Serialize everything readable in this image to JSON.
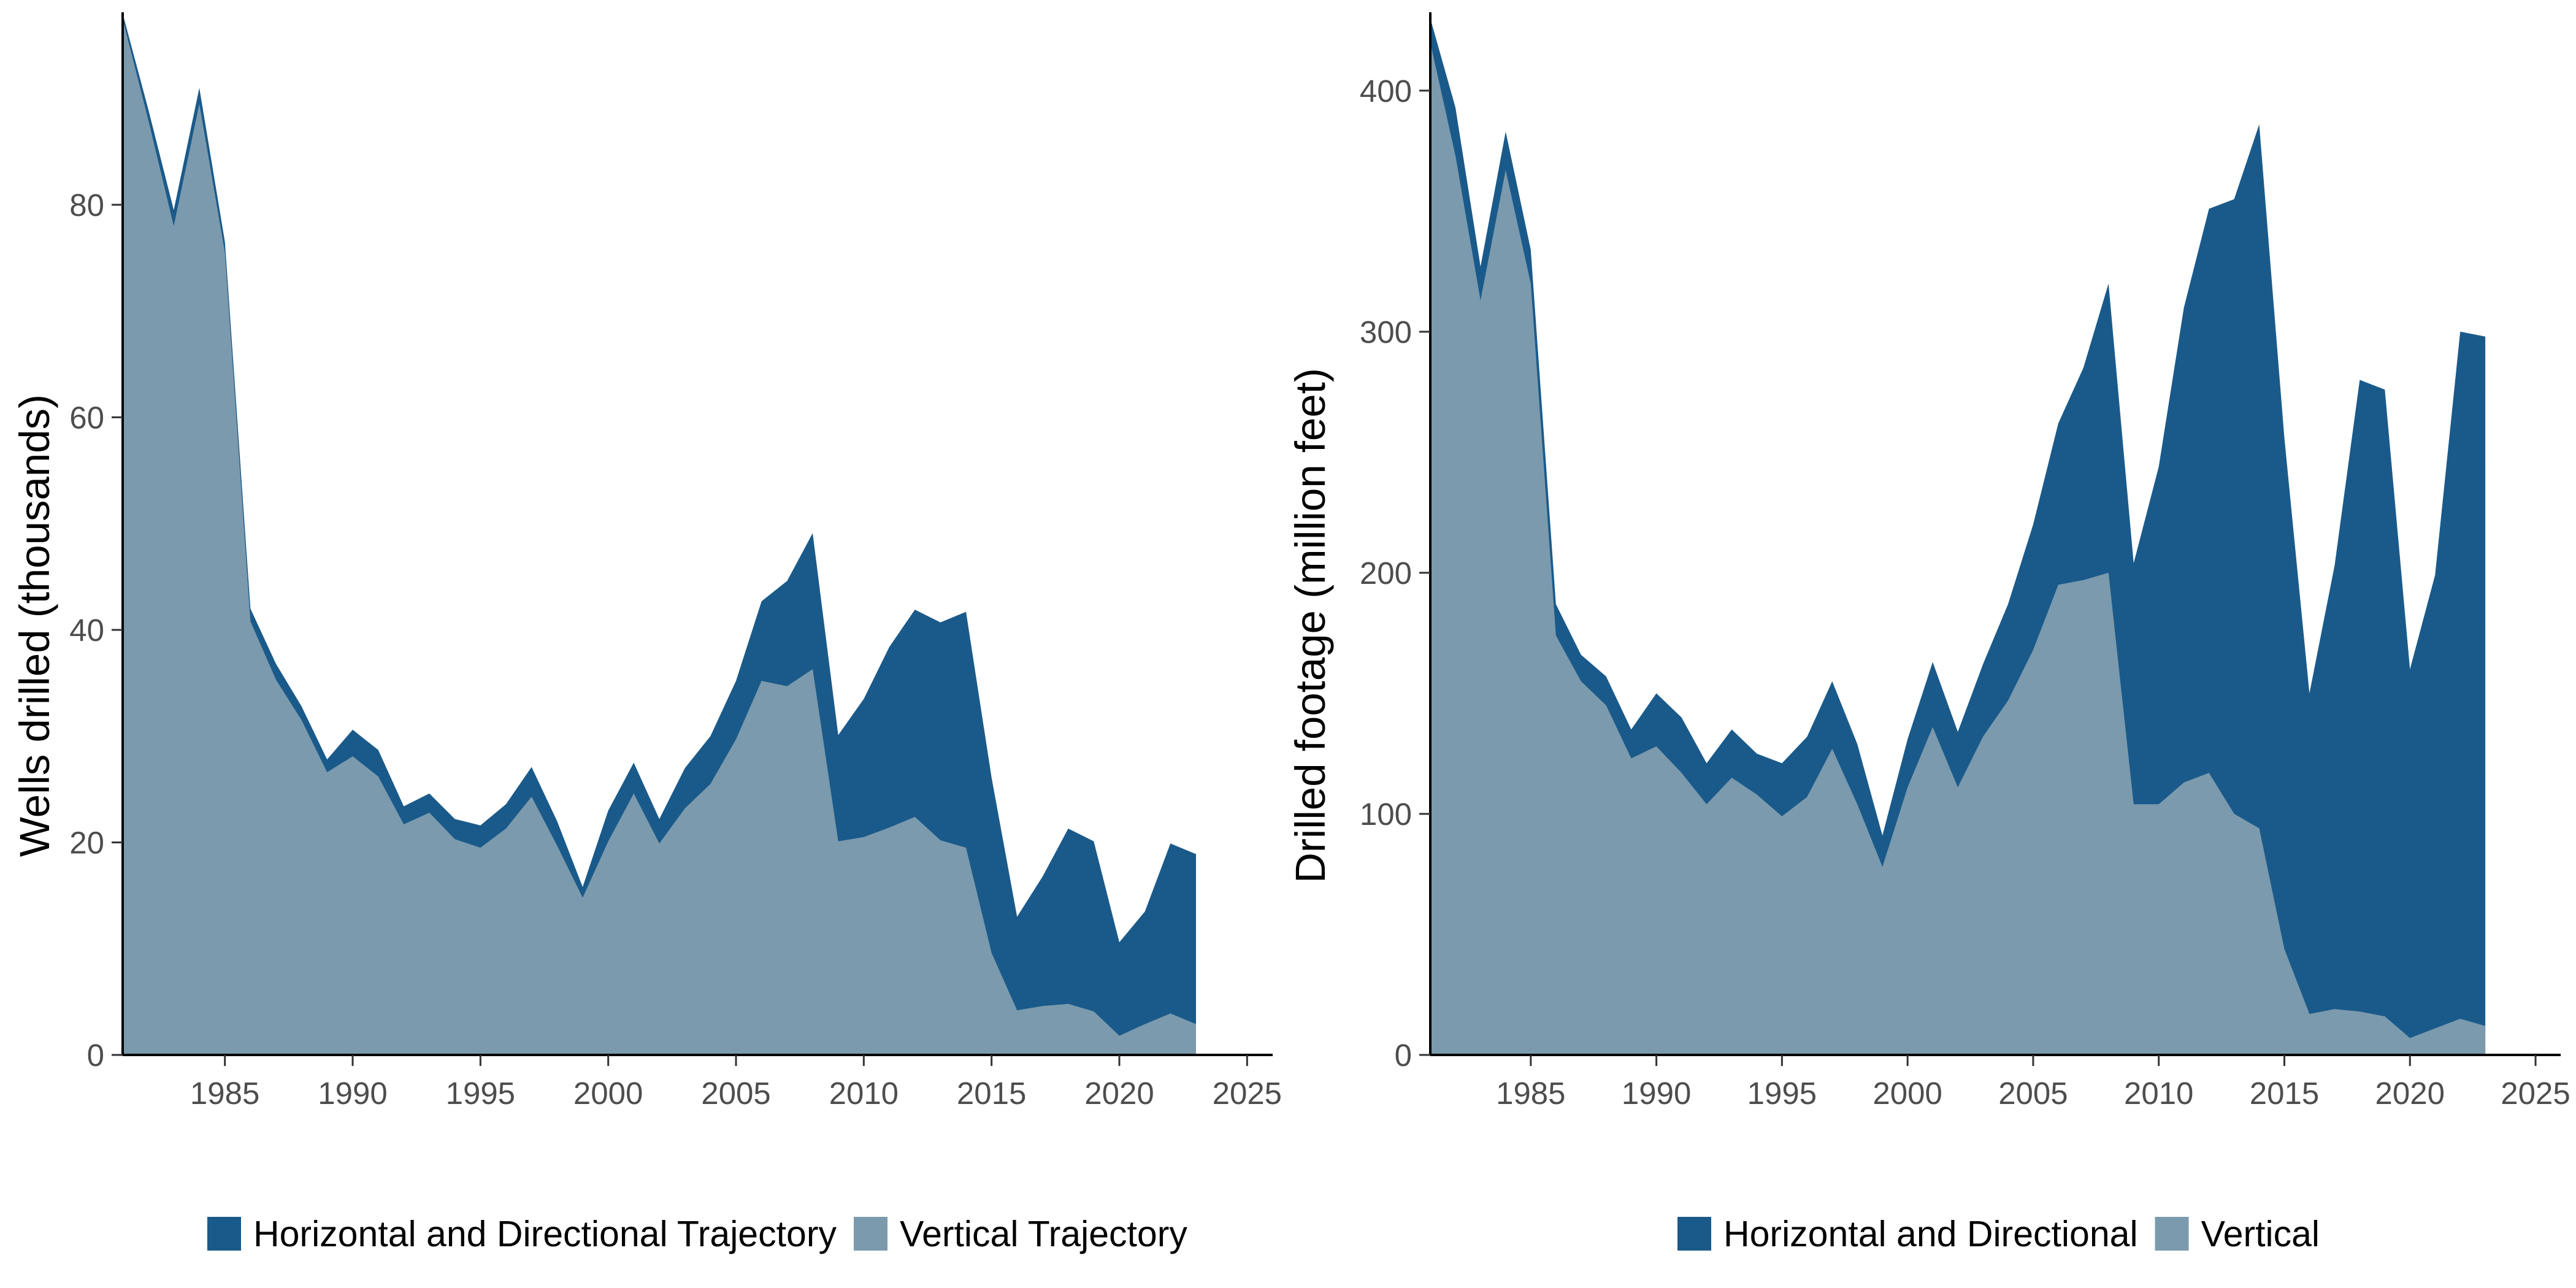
{
  "colors": {
    "horizontal": "#1a5a8a",
    "vertical": "#7b9aad",
    "axis": "#000000",
    "tick_text": "#4d4d4d"
  },
  "chart_data": [
    {
      "type": "area",
      "stacked": true,
      "ylabel": "Wells drilled (thousands)",
      "xlabel": "",
      "xlim": [
        1981,
        2026
      ],
      "ylim": [
        0,
        98
      ],
      "x_ticks": [
        1985,
        1990,
        1995,
        2000,
        2005,
        2010,
        2015,
        2020,
        2025
      ],
      "y_ticks": [
        0,
        20,
        40,
        60,
        80
      ],
      "grid": false,
      "legend_position": "bottom",
      "x": [
        1981,
        1982,
        1983,
        1984,
        1985,
        1986,
        1987,
        1988,
        1989,
        1990,
        1991,
        1992,
        1993,
        1994,
        1995,
        1996,
        1997,
        1998,
        1999,
        2000,
        2001,
        2002,
        2003,
        2004,
        2005,
        2006,
        2007,
        2008,
        2009,
        2010,
        2011,
        2012,
        2013,
        2014,
        2015,
        2016,
        2017,
        2018,
        2019,
        2020,
        2021,
        2022,
        2023
      ],
      "series": [
        {
          "name": "Horizontal and Directional Trajectory",
          "color": "#1a5a8a",
          "values": [
            0.5,
            1,
            1.5,
            1.5,
            1,
            1.2,
            1.5,
            1.3,
            1.2,
            2.5,
            2.5,
            1.7,
            1.8,
            1.9,
            2.1,
            2.3,
            2.8,
            2.3,
            1.0,
            2.9,
            2.9,
            2.3,
            3.8,
            4.5,
            5.5,
            7.5,
            9.9,
            12.8,
            10,
            13,
            17,
            19.5,
            20.5,
            22.2,
            16.5,
            8.8,
            12.2,
            16.5,
            16,
            8.8,
            10.6,
            16,
            16
          ]
        },
        {
          "name": "Vertical Trajectory",
          "color": "#7b9aad",
          "values": [
            97.5,
            88,
            78,
            89.5,
            75.5,
            40.8,
            35.3,
            31.5,
            26.6,
            28.1,
            26.2,
            21.7,
            22.8,
            20.3,
            19.5,
            21.3,
            24.3,
            19.7,
            14.8,
            20.1,
            24.6,
            19.9,
            23.2,
            25.5,
            29.7,
            35.2,
            34.7,
            36.3,
            20.1,
            20.5,
            21.4,
            22.4,
            20.2,
            19.5,
            9.6,
            4.2,
            4.6,
            4.8,
            4.1,
            1.8,
            2.9,
            3.9,
            2.9
          ]
        }
      ]
    },
    {
      "type": "area",
      "stacked": true,
      "ylabel": "Drilled footage (million feet)",
      "xlabel": "",
      "xlim": [
        1981,
        2026
      ],
      "ylim": [
        0,
        432
      ],
      "x_ticks": [
        1985,
        1990,
        1995,
        2000,
        2005,
        2010,
        2015,
        2020,
        2025
      ],
      "y_ticks": [
        0,
        100,
        200,
        300,
        400
      ],
      "grid": false,
      "legend_position": "bottom",
      "x": [
        1981,
        1982,
        1983,
        1984,
        1985,
        1986,
        1987,
        1988,
        1989,
        1990,
        1991,
        1992,
        1993,
        1994,
        1995,
        1996,
        1997,
        1998,
        1999,
        2000,
        2001,
        2002,
        2003,
        2004,
        2005,
        2006,
        2007,
        2008,
        2009,
        2010,
        2011,
        2012,
        2013,
        2014,
        2015,
        2016,
        2017,
        2018,
        2019,
        2020,
        2021,
        2022,
        2023
      ],
      "series": [
        {
          "name": "Horizontal and Directional",
          "color": "#1a5a8a",
          "values": [
            10,
            20,
            14,
            16,
            14,
            13,
            11,
            12,
            12,
            22,
            23,
            17,
            20,
            17,
            22,
            25,
            28,
            25,
            13,
            20,
            27,
            23,
            30,
            40,
            52,
            67,
            88,
            120,
            100,
            140,
            197,
            234,
            255,
            292,
            212,
            133,
            184,
            262,
            260,
            153,
            188,
            285,
            286
          ]
        },
        {
          "name": "Vertical",
          "color": "#7b9aad",
          "values": [
            420,
            373,
            313,
            367,
            320,
            174,
            155,
            145,
            123,
            128,
            117,
            104,
            115,
            108,
            99,
            107,
            127,
            104,
            78,
            111,
            136,
            111,
            132,
            147,
            168,
            195,
            197,
            200,
            104,
            104,
            113,
            117,
            100,
            94,
            44,
            17,
            19,
            18,
            16,
            7,
            11,
            15,
            12
          ]
        }
      ]
    }
  ]
}
